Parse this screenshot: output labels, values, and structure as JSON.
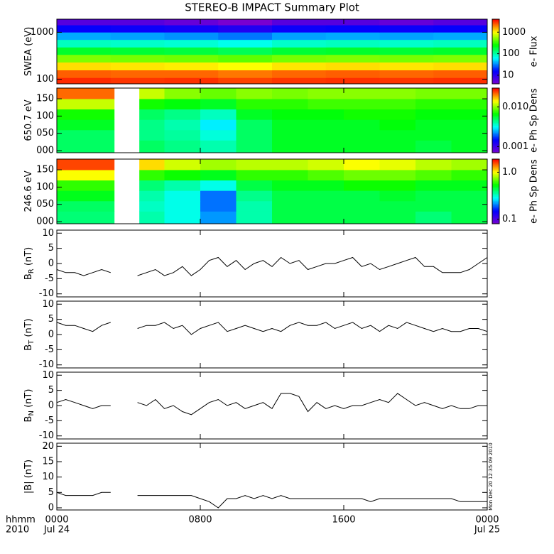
{
  "title": "STEREO-B IMPACT Summary Plot",
  "timestamp": "Mon Dec 20 12:35:09 2010",
  "colormap": [
    "#7a00d0",
    "#0000ff",
    "#00ffff",
    "#00ff00",
    "#ffff00",
    "#ff0000"
  ],
  "chart_data": [
    {
      "type": "spectrogram",
      "ylabel": "SWEA (eV)",
      "zlabel": "e- Flux",
      "ylog": true,
      "zlog": true,
      "xlim": [
        0,
        24
      ],
      "ylim": [
        80,
        1900
      ],
      "yticks": [
        100,
        1000
      ],
      "zlim": [
        4,
        4000
      ],
      "zticks": [
        10,
        100,
        1000
      ],
      "bins": [
        0,
        3,
        6,
        9,
        12,
        15,
        18,
        21,
        24
      ],
      "y": [
        90,
        130,
        190,
        280,
        400,
        580,
        840,
        1200,
        1700
      ],
      "values": [
        [
          3200,
          3000,
          3100,
          2800,
          3000,
          3100,
          3000,
          3100
        ],
        [
          2400,
          2300,
          2300,
          2100,
          2300,
          2400,
          2300,
          2400
        ],
        [
          1200,
          1150,
          1100,
          1000,
          1150,
          1200,
          1150,
          1200
        ],
        [
          500,
          480,
          460,
          420,
          480,
          500,
          480,
          500
        ],
        [
          200,
          190,
          180,
          160,
          190,
          200,
          190,
          200
        ],
        [
          90,
          85,
          80,
          70,
          85,
          90,
          85,
          90
        ],
        [
          40,
          38,
          35,
          30,
          38,
          40,
          38,
          40
        ],
        [
          15,
          14,
          13,
          11,
          14,
          15,
          14,
          15
        ],
        [
          6,
          6,
          5,
          4,
          6,
          6,
          5,
          6
        ]
      ]
    },
    {
      "type": "spectrogram",
      "ylabel": "650.7 eV",
      "zlabel": "e- Ph Sp Dens",
      "ylog": false,
      "zlog": true,
      "xlim": [
        0,
        24
      ],
      "ylim": [
        -6,
        181
      ],
      "yticks": [
        {
          "value": 0,
          "label": "000"
        },
        {
          "value": 50,
          "label": "050"
        },
        100,
        150
      ],
      "zlim": [
        0.0007,
        0.03
      ],
      "zticks": [
        0.001,
        {
          "value": 0.01,
          "label": "0.010"
        }
      ],
      "bins": [
        0,
        3.2,
        4.6,
        6,
        8,
        10,
        12,
        14,
        16,
        18,
        20,
        22,
        24
      ],
      "y": [
        15,
        45,
        75,
        105,
        135,
        165
      ],
      "values": [
        [
          0.005,
          null,
          0.005,
          0.0045,
          0.004,
          0.005,
          0.006,
          0.006,
          0.006,
          0.006,
          0.0055,
          0.006
        ],
        [
          0.005,
          null,
          0.0045,
          0.0042,
          0.0035,
          0.005,
          0.006,
          0.006,
          0.006,
          0.006,
          0.006,
          0.006
        ],
        [
          0.006,
          null,
          0.0045,
          0.004,
          0.003,
          0.005,
          0.006,
          0.006,
          0.006,
          0.0065,
          0.006,
          0.006
        ],
        [
          0.007,
          null,
          0.005,
          0.0045,
          0.0038,
          0.006,
          0.0065,
          0.0065,
          0.007,
          0.007,
          0.0065,
          0.0065
        ],
        [
          0.012,
          null,
          0.007,
          0.0065,
          0.006,
          0.0075,
          0.0075,
          0.008,
          0.008,
          0.008,
          0.0075,
          0.0075
        ],
        [
          0.022,
          null,
          0.012,
          0.01,
          0.009,
          0.01,
          0.0095,
          0.01,
          0.01,
          0.01,
          0.0095,
          0.0095
        ]
      ]
    },
    {
      "type": "spectrogram",
      "ylabel": "246.6 eV",
      "zlabel": "e- Ph Sp Dens",
      "ylog": false,
      "zlog": true,
      "xlim": [
        0,
        24
      ],
      "ylim": [
        -6,
        181
      ],
      "yticks": [
        {
          "value": 0,
          "label": "000"
        },
        {
          "value": 50,
          "label": "050"
        },
        100,
        150
      ],
      "zlim": [
        0.08,
        1.9
      ],
      "zticks": [
        0.1,
        {
          "value": 1,
          "label": "1.0"
        }
      ],
      "bins": [
        0,
        3.2,
        4.6,
        6,
        8,
        10,
        12,
        14,
        16,
        18,
        20,
        22,
        24
      ],
      "y": [
        15,
        45,
        75,
        105,
        135,
        165
      ],
      "values": [
        [
          0.4,
          null,
          0.35,
          0.3,
          0.22,
          0.35,
          0.45,
          0.45,
          0.45,
          0.45,
          0.4,
          0.45
        ],
        [
          0.42,
          null,
          0.33,
          0.3,
          0.2,
          0.35,
          0.45,
          0.45,
          0.45,
          0.45,
          0.45,
          0.45
        ],
        [
          0.5,
          null,
          0.35,
          0.3,
          0.2,
          0.38,
          0.45,
          0.45,
          0.45,
          0.48,
          0.45,
          0.45
        ],
        [
          0.6,
          null,
          0.4,
          0.35,
          0.3,
          0.45,
          0.5,
          0.5,
          0.55,
          0.55,
          0.5,
          0.5
        ],
        [
          1.0,
          null,
          0.6,
          0.55,
          0.5,
          0.6,
          0.6,
          0.65,
          0.7,
          0.7,
          0.65,
          0.6
        ],
        [
          1.6,
          null,
          1.1,
          0.9,
          0.8,
          0.85,
          0.85,
          0.9,
          1.0,
          0.95,
          0.85,
          0.8
        ]
      ]
    },
    {
      "type": "line",
      "ylabel": "B",
      "ylabel_sub": "R",
      "ylabel_unit": " (nT)",
      "color": "#000000",
      "xlim": [
        0,
        24
      ],
      "ylim": [
        -11,
        11
      ],
      "yticks": [
        -10,
        -5,
        0,
        5,
        10
      ],
      "x": [
        0,
        0.5,
        1,
        1.5,
        2,
        2.5,
        3,
        3.5,
        4,
        4.5,
        5,
        5.5,
        6,
        6.5,
        7,
        7.5,
        8,
        8.5,
        9,
        9.5,
        10,
        10.5,
        11,
        11.5,
        12,
        12.5,
        13,
        13.5,
        14,
        14.5,
        15,
        15.5,
        16,
        16.5,
        17,
        17.5,
        18,
        18.5,
        19,
        19.5,
        20,
        20.5,
        21,
        21.5,
        22,
        22.5,
        23,
        23.5,
        24
      ],
      "values": [
        -2,
        -3,
        -3,
        -4,
        -3,
        -2,
        -3,
        null,
        null,
        -4,
        -3,
        -2,
        -4,
        -3,
        -1,
        -4,
        -2,
        1,
        2,
        -1,
        1,
        -2,
        0,
        1,
        -1,
        2,
        0,
        1,
        -2,
        -1,
        0,
        0,
        1,
        2,
        -1,
        0,
        -2,
        -1,
        0,
        1,
        2,
        -1,
        -1,
        -3,
        -3,
        -3,
        -2,
        0,
        2
      ]
    },
    {
      "type": "line",
      "ylabel": "B",
      "ylabel_sub": "T",
      "ylabel_unit": " (nT)",
      "color": "#000000",
      "xlim": [
        0,
        24
      ],
      "ylim": [
        -11,
        11
      ],
      "yticks": [
        -10,
        -5,
        0,
        5,
        10
      ],
      "x": [
        0,
        0.5,
        1,
        1.5,
        2,
        2.5,
        3,
        3.5,
        4,
        4.5,
        5,
        5.5,
        6,
        6.5,
        7,
        7.5,
        8,
        8.5,
        9,
        9.5,
        10,
        10.5,
        11,
        11.5,
        12,
        12.5,
        13,
        13.5,
        14,
        14.5,
        15,
        15.5,
        16,
        16.5,
        17,
        17.5,
        18,
        18.5,
        19,
        19.5,
        20,
        20.5,
        21,
        21.5,
        22,
        22.5,
        23,
        23.5,
        24
      ],
      "values": [
        4,
        3,
        3,
        2,
        1,
        3,
        4,
        null,
        null,
        2,
        3,
        3,
        4,
        2,
        3,
        0,
        2,
        3,
        4,
        1,
        2,
        3,
        2,
        1,
        2,
        1,
        3,
        4,
        3,
        3,
        4,
        2,
        3,
        4,
        2,
        3,
        1,
        3,
        2,
        4,
        3,
        2,
        1,
        2,
        1,
        1,
        2,
        2,
        1
      ]
    },
    {
      "type": "line",
      "ylabel": "B",
      "ylabel_sub": "N",
      "ylabel_unit": " (nT)",
      "color": "#000000",
      "xlim": [
        0,
        24
      ],
      "ylim": [
        -11,
        11
      ],
      "yticks": [
        -10,
        -5,
        0,
        5,
        10
      ],
      "x": [
        0,
        0.5,
        1,
        1.5,
        2,
        2.5,
        3,
        3.5,
        4,
        4.5,
        5,
        5.5,
        6,
        6.5,
        7,
        7.5,
        8,
        8.5,
        9,
        9.5,
        10,
        10.5,
        11,
        11.5,
        12,
        12.5,
        13,
        13.5,
        14,
        14.5,
        15,
        15.5,
        16,
        16.5,
        17,
        17.5,
        18,
        18.5,
        19,
        19.5,
        20,
        20.5,
        21,
        21.5,
        22,
        22.5,
        23,
        23.5,
        24
      ],
      "values": [
        1,
        2,
        1,
        0,
        -1,
        0,
        0,
        null,
        null,
        1,
        0,
        2,
        -1,
        0,
        -2,
        -3,
        -1,
        1,
        2,
        0,
        1,
        -1,
        0,
        1,
        -1,
        4,
        4,
        3,
        -2,
        1,
        -1,
        0,
        -1,
        0,
        0,
        1,
        2,
        1,
        4,
        2,
        0,
        1,
        0,
        -1,
        0,
        -1,
        -1,
        0,
        0
      ]
    },
    {
      "type": "line",
      "ylabel": "|B| (nT)",
      "color": "#000000",
      "xlim": [
        0,
        24
      ],
      "ylim": [
        -0.7,
        21
      ],
      "yticks": [
        0,
        5,
        10,
        15,
        20
      ],
      "xticks": [
        {
          "value": 0,
          "label": "0000"
        },
        {
          "value": 8,
          "label": "0800"
        },
        {
          "value": 16,
          "label": "1600"
        },
        {
          "value": 24,
          "label": "0000"
        }
      ],
      "xdates": [
        {
          "value": 0,
          "label": "Jul 24"
        },
        {
          "value": 24,
          "label": "Jul 25"
        }
      ],
      "xlabel": "hhmm",
      "year": "2010",
      "x": [
        0,
        0.5,
        1,
        1.5,
        2,
        2.5,
        3,
        3.5,
        4,
        4.5,
        5,
        5.5,
        6,
        6.5,
        7,
        7.5,
        8,
        8.5,
        9,
        9.5,
        10,
        10.5,
        11,
        11.5,
        12,
        12.5,
        13,
        13.5,
        14,
        14.5,
        15,
        15.5,
        16,
        16.5,
        17,
        17.5,
        18,
        18.5,
        19,
        19.5,
        20,
        20.5,
        21,
        21.5,
        22,
        22.5,
        23,
        23.5,
        24
      ],
      "values": [
        5,
        4,
        4,
        4,
        4,
        5,
        5,
        null,
        null,
        4,
        4,
        4,
        4,
        4,
        4,
        4,
        3,
        2,
        0,
        3,
        3,
        4,
        3,
        4,
        3,
        4,
        3,
        3,
        3,
        3,
        3,
        3,
        3,
        3,
        3,
        2,
        3,
        3,
        3,
        3,
        3,
        3,
        3,
        3,
        3,
        2,
        2,
        2,
        2
      ]
    }
  ]
}
